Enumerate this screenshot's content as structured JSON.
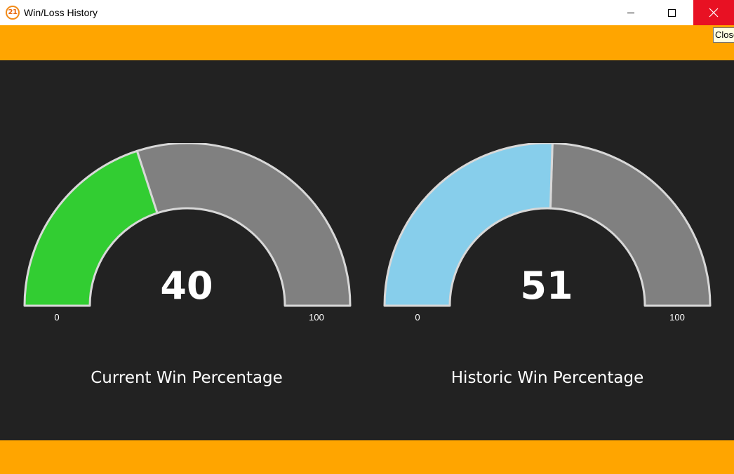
{
  "window": {
    "title": "Win/Loss History",
    "app_icon_text": "21",
    "close_tooltip": "Close"
  },
  "colors": {
    "band": "#ffa500",
    "background": "#222222",
    "current_fill": "#32cd32",
    "historic_fill": "#87ceeb",
    "remaining_fill": "#808080",
    "outline": "#d8d8d8",
    "close_button": "#e81123"
  },
  "gauges": [
    {
      "value": 40,
      "min_label": "0",
      "max_label": "100",
      "caption": "Current Win Percentage",
      "fill": "#32cd32"
    },
    {
      "value": 51,
      "min_label": "0",
      "max_label": "100",
      "caption": "Historic Win Percentage",
      "fill": "#87ceeb"
    }
  ]
}
